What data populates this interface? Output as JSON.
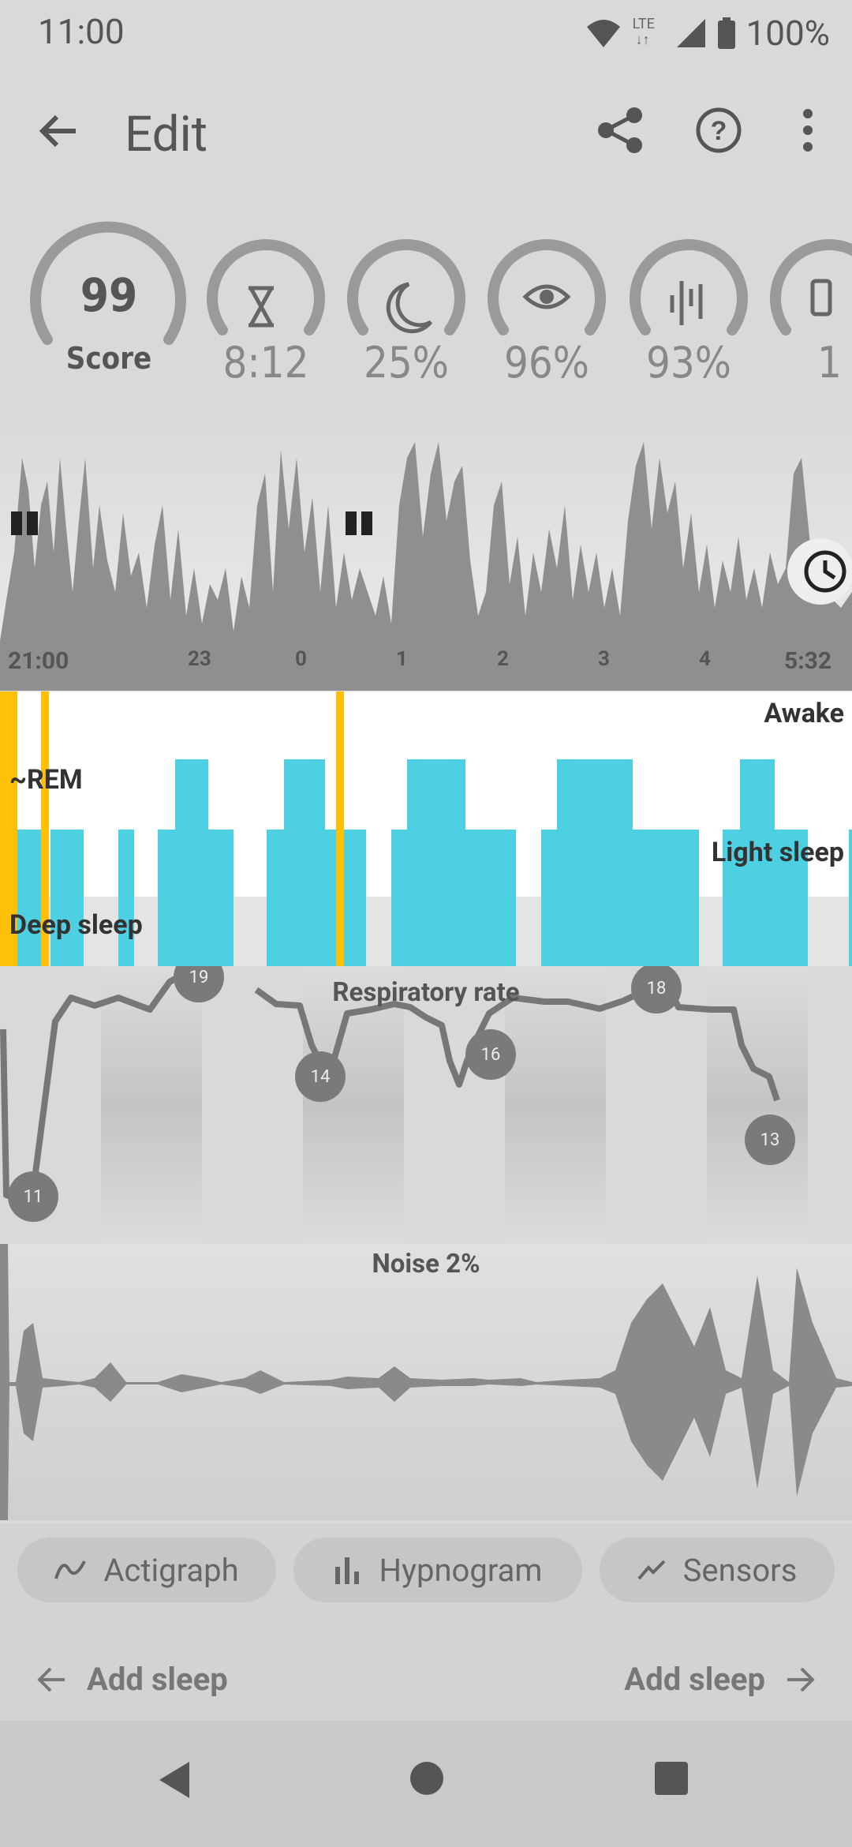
{
  "status_bar": {
    "time": "11:00",
    "battery": "100%",
    "network": "LTE"
  },
  "app_bar": {
    "title": "Edit",
    "icons": [
      "back-arrow-icon",
      "share-icon",
      "help-icon",
      "more-vert-icon"
    ]
  },
  "metrics": [
    {
      "icon": "score",
      "value": "99",
      "label": "Score",
      "fill": 0.99
    },
    {
      "icon": "hourglass-icon",
      "value": "8:12",
      "fill": 0.92
    },
    {
      "icon": "moon-icon",
      "value": "25%",
      "fill": 0.98
    },
    {
      "icon": "eye-icon",
      "value": "96%",
      "fill": 1.0
    },
    {
      "icon": "noise-bars-icon",
      "value": "93%",
      "fill": 1.0
    },
    {
      "icon": "phone-icon",
      "value": "1",
      "fill": 1.0
    }
  ],
  "actigraph": {
    "time_labels": [
      "21:00",
      "23",
      "0",
      "1",
      "2",
      "3",
      "4",
      "5:32"
    ]
  },
  "hypnogram": {
    "labels": {
      "awake": "Awake",
      "rem": "~REM",
      "light": "Light sleep",
      "deep": "Deep sleep"
    }
  },
  "respiratory": {
    "title": "Respiratory rate",
    "markers": [
      "11",
      "19",
      "14",
      "16",
      "18",
      "13"
    ]
  },
  "noise": {
    "title": "Noise 2%"
  },
  "chips": [
    {
      "label": "Actigraph",
      "icon": "wave-icon"
    },
    {
      "label": "Hypnogram",
      "icon": "bars-icon"
    },
    {
      "label": "Sensors",
      "icon": "trend-icon"
    }
  ],
  "navigation": {
    "prev_label": "Add sleep",
    "next_label": "Add sleep"
  },
  "colors": {
    "accent_rem": "#4dd0e1",
    "awake_marker": "#ffc107",
    "background": "#d9d9d9"
  }
}
